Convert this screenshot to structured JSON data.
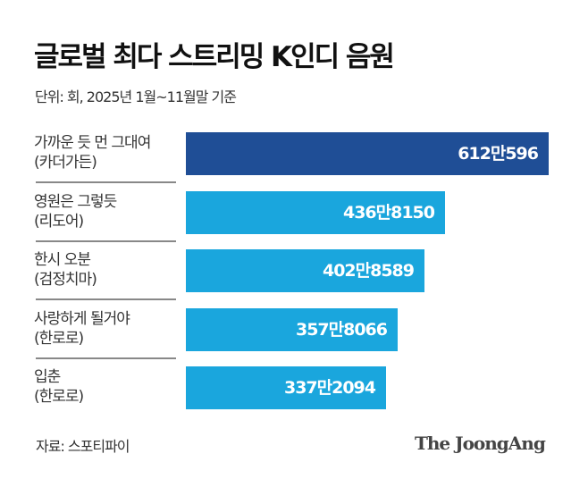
{
  "chart_data": {
    "type": "bar",
    "orientation": "horizontal",
    "title": "글로벌 최다 스트리밍 K인디 음원",
    "subtitle": "단위: 회, 2025년 1월~11월말 기준",
    "categories": [
      {
        "song": "가까운 듯 먼 그대여",
        "artist": "(카더가든)"
      },
      {
        "song": "영원은 그렇듯",
        "artist": "(리도어)"
      },
      {
        "song": "한시 오분",
        "artist": "(검정치마)"
      },
      {
        "song": "사랑하게 될거야",
        "artist": "(한로로)"
      },
      {
        "song": "입춘",
        "artist": "(한로로)"
      }
    ],
    "values": [
      6120596,
      4368150,
      4028589,
      3578066,
      3372094
    ],
    "value_labels": [
      "612만596",
      "436만8150",
      "402만8589",
      "357만8066",
      "337만2094"
    ],
    "colors": [
      "#1f4e96",
      "#1aa6dd",
      "#1aa6dd",
      "#1aa6dd",
      "#1aa6dd"
    ],
    "xlim": [
      0,
      6120596
    ],
    "grid": false,
    "source": "자료: 스포티파이",
    "logo": "The JoongAng"
  }
}
